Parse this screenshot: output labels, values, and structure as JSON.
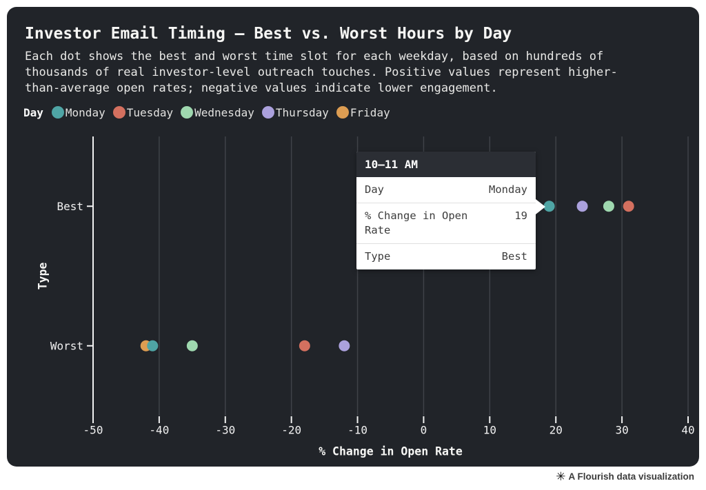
{
  "title": "Investor Email Timing – Best vs. Worst Hours by Day",
  "subtitle": "Each dot shows the best and worst time slot for each weekday, based on hundreds of thousands of real investor-level outreach touches. Positive values represent higher-than-average open rates; negative values indicate lower engagement.",
  "legend": {
    "label": "Day",
    "items": [
      {
        "name": "Monday",
        "color": "#4fa5a5"
      },
      {
        "name": "Tuesday",
        "color": "#d4705f"
      },
      {
        "name": "Wednesday",
        "color": "#9fd8af"
      },
      {
        "name": "Thursday",
        "color": "#aba1dd"
      },
      {
        "name": "Friday",
        "color": "#dd9d52"
      }
    ]
  },
  "chart_data": {
    "type": "scatter",
    "title": "Investor Email Timing – Best vs. Worst Hours by Day",
    "xlabel": "% Change in Open Rate",
    "ylabel": "Type",
    "xlim": [
      -50,
      40
    ],
    "x_ticks": [
      -50,
      -40,
      -30,
      -20,
      -10,
      0,
      10,
      20,
      30,
      40
    ],
    "y_categories": [
      "Best",
      "Worst"
    ],
    "grid": "vertical-gridlines-on",
    "legend_position": "top",
    "series": [
      {
        "name": "Monday",
        "color": "#4fa5a5",
        "points": [
          {
            "type": "Best",
            "value": 19
          },
          {
            "type": "Worst",
            "value": -41
          }
        ]
      },
      {
        "name": "Tuesday",
        "color": "#d4705f",
        "points": [
          {
            "type": "Best",
            "value": 31
          },
          {
            "type": "Worst",
            "value": -18
          }
        ]
      },
      {
        "name": "Wednesday",
        "color": "#9fd8af",
        "points": [
          {
            "type": "Best",
            "value": 28
          },
          {
            "type": "Worst",
            "value": -35
          }
        ]
      },
      {
        "name": "Thursday",
        "color": "#aba1dd",
        "points": [
          {
            "type": "Best",
            "value": 24
          },
          {
            "type": "Worst",
            "value": -12
          }
        ]
      },
      {
        "name": "Friday",
        "color": "#dd9d52",
        "points": [
          {
            "type": "Worst",
            "value": -42
          }
        ]
      }
    ]
  },
  "tooltip": {
    "header": "10–11 AM",
    "rows": [
      {
        "label": "Day",
        "value": "Monday"
      },
      {
        "label": "% Change in Open Rate",
        "value": "19"
      },
      {
        "label": "Type",
        "value": "Best"
      }
    ]
  },
  "footer": {
    "logo": "✳",
    "text": "A Flourish data visualization"
  },
  "colors": {
    "card_background": "#212429",
    "gridline": "#3f4248",
    "axis": "#f2f2f2",
    "text_primary": "#f7f7f5",
    "tooltip_header_background": "#2b2e34"
  }
}
